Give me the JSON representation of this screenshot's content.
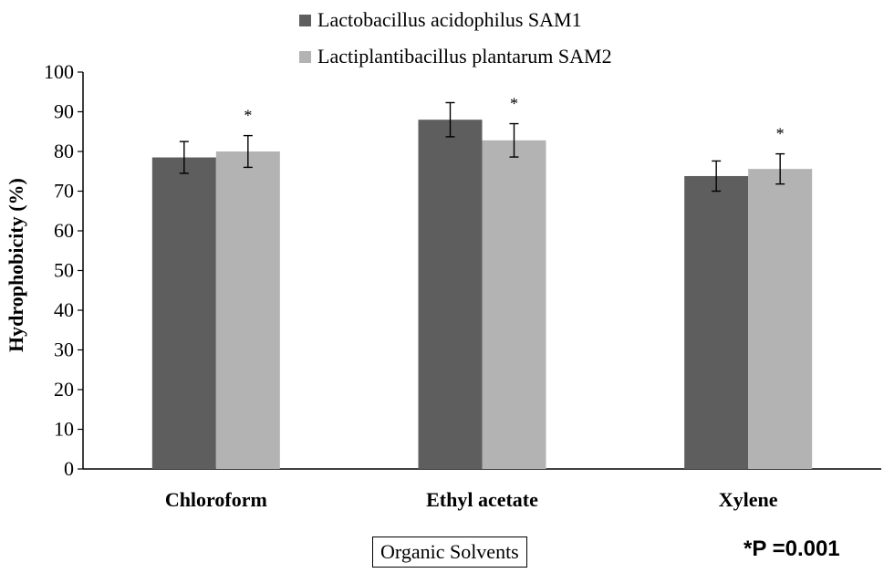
{
  "chart_data": {
    "type": "bar",
    "ylabel": "Hydrophobicity (%)",
    "xlabel": "Organic Solvents",
    "ylim": [
      0,
      100
    ],
    "yticks": [
      0,
      10,
      20,
      30,
      40,
      50,
      60,
      70,
      80,
      90,
      100
    ],
    "categories": [
      "Chloroform",
      "Ethyl acetate",
      "Xylene"
    ],
    "series": [
      {
        "name": "Lactobacillus acidophilus SAM1",
        "values": [
          78.5,
          88,
          73.8
        ],
        "errors": [
          4,
          4.3,
          3.8
        ],
        "color": "#5e5e5e"
      },
      {
        "name": "Lactiplantibacillus plantarum SAM2",
        "values": [
          80,
          82.8,
          75.6
        ],
        "errors": [
          4,
          4.2,
          3.8
        ],
        "color": "#b3b3b3"
      }
    ],
    "significance_marker": "*",
    "annotation": "*P =0.001",
    "legend_position": "top"
  }
}
